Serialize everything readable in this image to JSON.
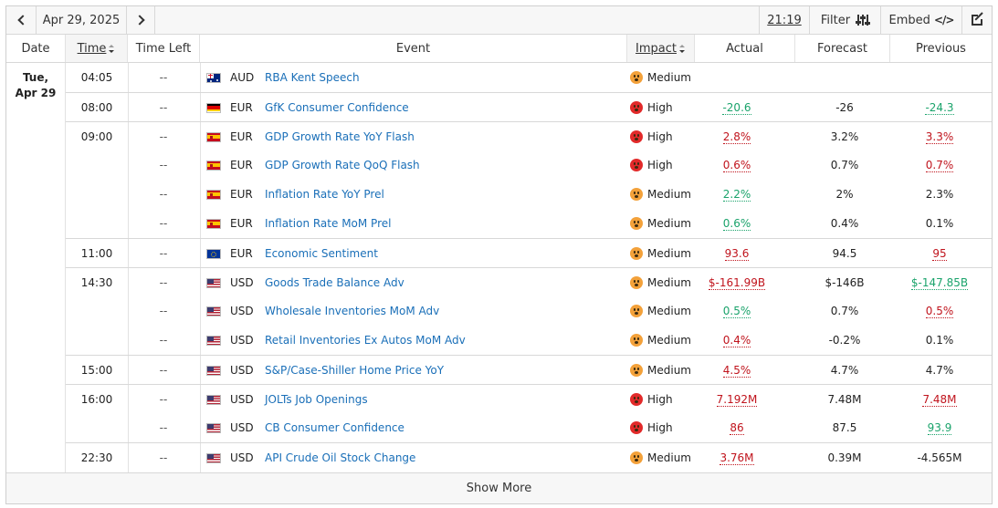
{
  "toolbar": {
    "date": "Apr 29, 2025",
    "clock": "21:19",
    "filter_label": "Filter",
    "embed_label": "Embed",
    "embed_code": "</>"
  },
  "columns": {
    "date": "Date",
    "time": "Time",
    "time_left": "Time Left",
    "event": "Event",
    "impact": "Impact",
    "actual": "Actual",
    "forecast": "Forecast",
    "previous": "Previous"
  },
  "date_group": {
    "day": "Tue,",
    "date": "Apr 29"
  },
  "rows": [
    {
      "time": "04:05",
      "time_left": "--",
      "flag": "AU",
      "currency": "AUD",
      "event": "RBA Kent Speech",
      "impact": "Medium",
      "actual": "",
      "actual_color": "neu",
      "forecast": "",
      "previous": "",
      "previous_color": "neu",
      "sep": false
    },
    {
      "time": "08:00",
      "time_left": "--",
      "flag": "DE",
      "currency": "EUR",
      "event": "GfK Consumer Confidence",
      "impact": "High",
      "actual": "-20.6",
      "actual_color": "pos",
      "forecast": "-26",
      "previous": "-24.3",
      "previous_color": "pos",
      "sep": true
    },
    {
      "time": "09:00",
      "time_left": "--",
      "flag": "ES",
      "currency": "EUR",
      "event": "GDP Growth Rate YoY Flash",
      "impact": "High",
      "actual": "2.8%",
      "actual_color": "neg",
      "forecast": "3.2%",
      "previous": "3.3%",
      "previous_color": "neg",
      "sep": true
    },
    {
      "time": "",
      "time_left": "--",
      "flag": "ES",
      "currency": "EUR",
      "event": "GDP Growth Rate QoQ Flash",
      "impact": "High",
      "actual": "0.6%",
      "actual_color": "neg",
      "forecast": "0.7%",
      "previous": "0.7%",
      "previous_color": "neg",
      "sep": false
    },
    {
      "time": "",
      "time_left": "--",
      "flag": "ES",
      "currency": "EUR",
      "event": "Inflation Rate YoY Prel",
      "impact": "Medium",
      "actual": "2.2%",
      "actual_color": "pos",
      "forecast": "2%",
      "previous": "2.3%",
      "previous_color": "neu",
      "sep": false
    },
    {
      "time": "",
      "time_left": "--",
      "flag": "ES",
      "currency": "EUR",
      "event": "Inflation Rate MoM Prel",
      "impact": "Medium",
      "actual": "0.6%",
      "actual_color": "pos",
      "forecast": "0.4%",
      "previous": "0.1%",
      "previous_color": "neu",
      "sep": false
    },
    {
      "time": "11:00",
      "time_left": "--",
      "flag": "EU",
      "currency": "EUR",
      "event": "Economic Sentiment",
      "impact": "Medium",
      "actual": "93.6",
      "actual_color": "neg",
      "forecast": "94.5",
      "previous": "95",
      "previous_color": "neg",
      "sep": true
    },
    {
      "time": "14:30",
      "time_left": "--",
      "flag": "US",
      "currency": "USD",
      "event": "Goods Trade Balance Adv",
      "impact": "Medium",
      "actual": "$-161.99B",
      "actual_color": "neg",
      "forecast": "$-146B",
      "previous": "$-147.85B",
      "previous_color": "pos",
      "sep": true
    },
    {
      "time": "",
      "time_left": "--",
      "flag": "US",
      "currency": "USD",
      "event": "Wholesale Inventories MoM Adv",
      "impact": "Medium",
      "actual": "0.5%",
      "actual_color": "pos",
      "forecast": "0.7%",
      "previous": "0.5%",
      "previous_color": "neg",
      "sep": false
    },
    {
      "time": "",
      "time_left": "--",
      "flag": "US",
      "currency": "USD",
      "event": "Retail Inventories Ex Autos MoM Adv",
      "impact": "Medium",
      "actual": "0.4%",
      "actual_color": "neg",
      "forecast": "-0.2%",
      "previous": "0.1%",
      "previous_color": "neu",
      "sep": false
    },
    {
      "time": "15:00",
      "time_left": "--",
      "flag": "US",
      "currency": "USD",
      "event": "S&P/Case-Shiller Home Price YoY",
      "impact": "Medium",
      "actual": "4.5%",
      "actual_color": "neg",
      "forecast": "4.7%",
      "previous": "4.7%",
      "previous_color": "neu",
      "sep": true
    },
    {
      "time": "16:00",
      "time_left": "--",
      "flag": "US",
      "currency": "USD",
      "event": "JOLTs Job Openings",
      "impact": "High",
      "actual": "7.192M",
      "actual_color": "neg",
      "forecast": "7.48M",
      "previous": "7.48M",
      "previous_color": "neg",
      "sep": true
    },
    {
      "time": "",
      "time_left": "--",
      "flag": "US",
      "currency": "USD",
      "event": "CB Consumer Confidence",
      "impact": "High",
      "actual": "86",
      "actual_color": "neg",
      "forecast": "87.5",
      "previous": "93.9",
      "previous_color": "pos",
      "sep": false
    },
    {
      "time": "22:30",
      "time_left": "--",
      "flag": "US",
      "currency": "USD",
      "event": "API Crude Oil Stock Change",
      "impact": "Medium",
      "actual": "3.76M",
      "actual_color": "neg",
      "forecast": "0.39M",
      "previous": "-4.565M",
      "previous_color": "neu",
      "sep": true
    }
  ],
  "footer": {
    "show_more": "Show More"
  },
  "colors": {
    "link": "#1a6fb8",
    "negative": "#c0141d",
    "positive": "#1aa36b",
    "medium": "#f3a13a",
    "high": "#e22a2a"
  }
}
